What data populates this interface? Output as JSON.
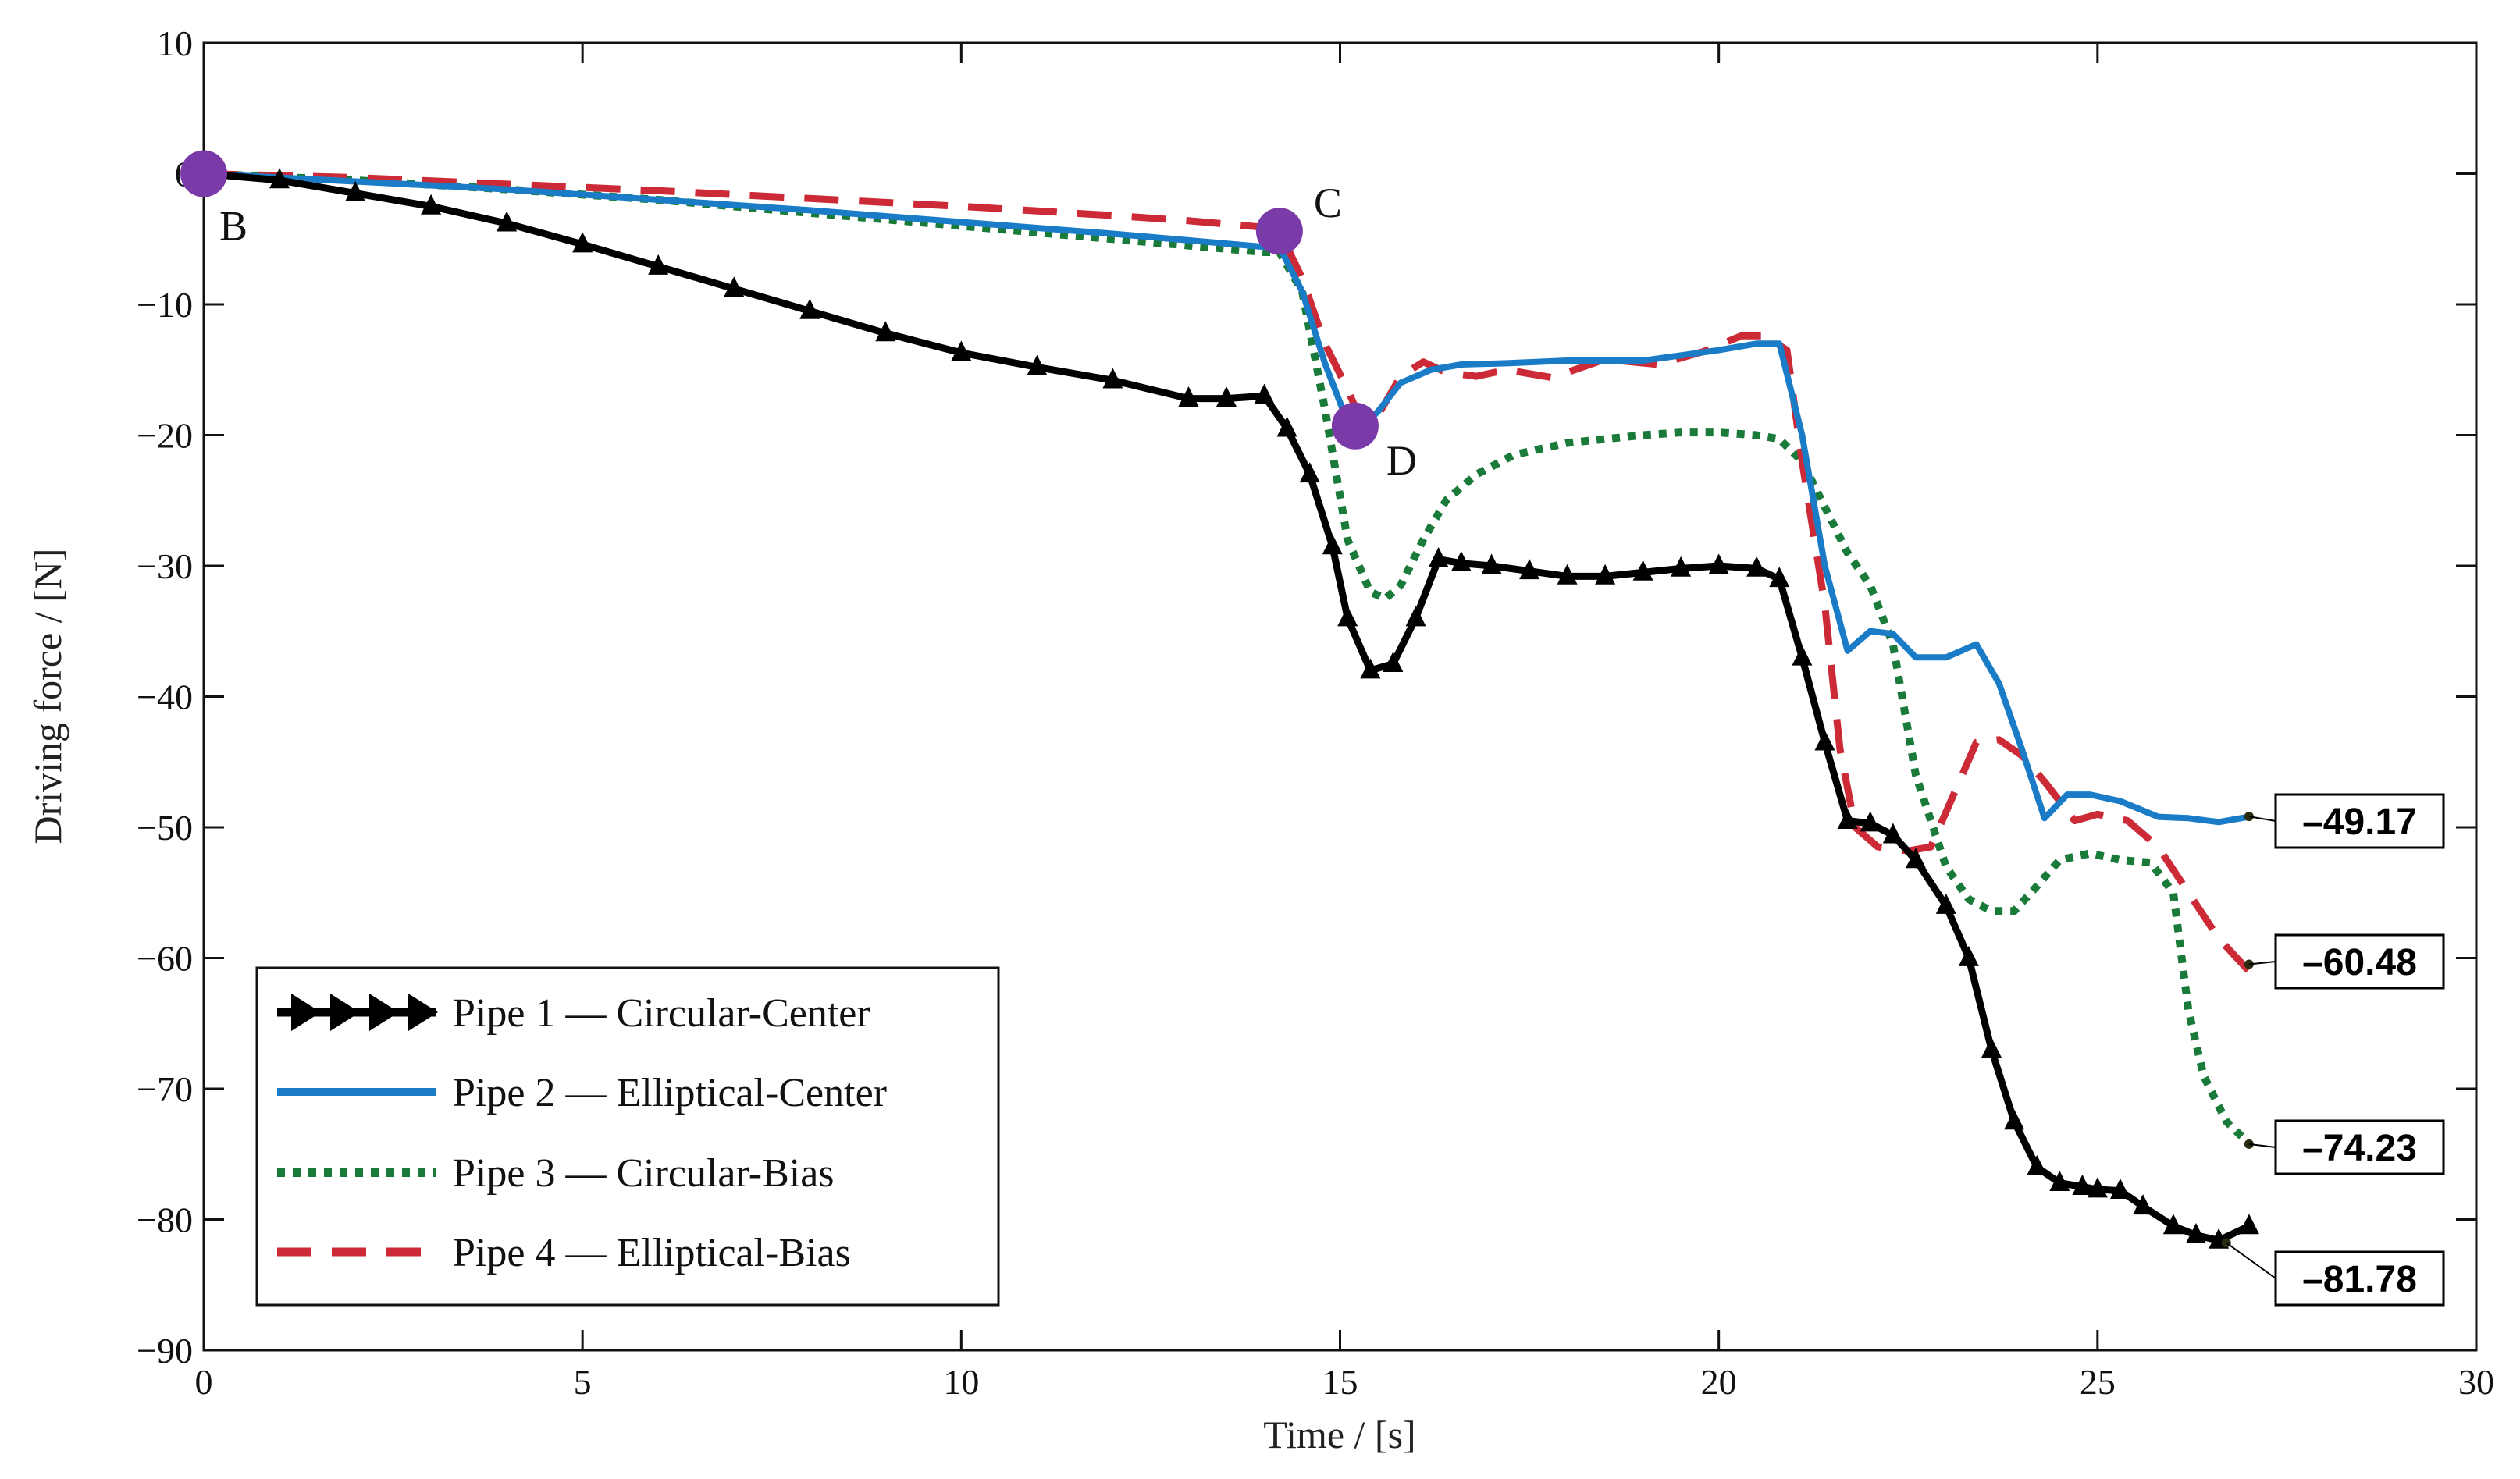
{
  "chart_data": {
    "type": "line",
    "xlabel": "Time / [s]",
    "ylabel": "Driving force / [N]",
    "xlim": [
      0,
      30
    ],
    "ylim": [
      -90,
      10
    ],
    "xticks": [
      "0",
      "5",
      "10",
      "15",
      "20",
      "25",
      "30"
    ],
    "yticks": [
      "10",
      "0",
      "−10",
      "−20",
      "−30",
      "−40",
      "−50",
      "−60",
      "−70",
      "−80",
      "−90"
    ],
    "legend_position": "bottom-left",
    "series": [
      {
        "name": "Pipe 1 — Circular-Center",
        "color": "#000000",
        "style": "solid-triangles",
        "x": [
          0,
          1,
          2,
          3,
          4,
          5,
          6,
          7,
          8,
          9,
          10,
          11,
          12,
          13,
          13.5,
          14,
          14.3,
          14.6,
          14.9,
          15.1,
          15.4,
          15.7,
          16,
          16.3,
          16.6,
          17,
          17.5,
          18,
          18.5,
          19,
          19.5,
          20,
          20.5,
          20.8,
          21.1,
          21.4,
          21.7,
          22,
          22.3,
          22.6,
          23,
          23.3,
          23.6,
          23.9,
          24.2,
          24.5,
          24.8,
          25,
          25.3,
          25.6,
          26,
          26.3,
          26.6,
          27
        ],
        "y": [
          0,
          -0.5,
          -1.5,
          -2.5,
          -3.8,
          -5.4,
          -7.1,
          -8.8,
          -10.5,
          -12.2,
          -13.7,
          -14.8,
          -15.8,
          -17.2,
          -17.2,
          -17.0,
          -19.5,
          -23,
          -28.5,
          -34,
          -38,
          -37.5,
          -34,
          -29.5,
          -29.8,
          -30,
          -30.4,
          -30.8,
          -30.8,
          -30.5,
          -30.2,
          -30.0,
          -30.2,
          -31,
          -37,
          -43.5,
          -49.5,
          -49.7,
          -50.6,
          -52.5,
          -56,
          -60,
          -67,
          -72.5,
          -76,
          -77.2,
          -77.5,
          -77.7,
          -77.8,
          -79,
          -80.5,
          -81.2,
          -81.6,
          -80.5
        ]
      },
      {
        "name": "Pipe 2 — Elliptical-Center",
        "color": "#1a7cc7",
        "style": "solid",
        "x": [
          0,
          2,
          4,
          6,
          8,
          10,
          12,
          13,
          14,
          14.2,
          14.5,
          14.8,
          15.1,
          15.3,
          15.5,
          15.8,
          16.2,
          16.6,
          17.2,
          18,
          19,
          20,
          20.5,
          20.8,
          21.1,
          21.4,
          21.7,
          22.0,
          22.3,
          22.6,
          23.0,
          23.4,
          23.7,
          24.0,
          24.3,
          24.6,
          24.9,
          25.3,
          25.8,
          26.2,
          26.6,
          27
        ],
        "y": [
          0,
          -0.6,
          -1.2,
          -2,
          -2.8,
          -3.7,
          -4.6,
          -5.1,
          -5.6,
          -5.6,
          -9,
          -14.5,
          -19,
          -19.3,
          -18.2,
          -16,
          -15,
          -14.6,
          -14.5,
          -14.3,
          -14.3,
          -13.5,
          -13,
          -13,
          -20,
          -30,
          -36.5,
          -35,
          -35.2,
          -37,
          -37,
          -36,
          -39,
          -44,
          -49.3,
          -47.5,
          -47.5,
          -48,
          -49.2,
          -49.3,
          -49.6,
          -49.2
        ]
      },
      {
        "name": "Pipe 3 — Circular-Bias",
        "color": "#1a7a3a",
        "style": "dotted",
        "x": [
          0,
          2,
          4,
          6,
          8,
          10,
          12,
          13,
          14,
          14.2,
          14.5,
          14.8,
          15.1,
          15.4,
          15.6,
          15.8,
          16.1,
          16.4,
          16.8,
          17.3,
          18,
          18.5,
          19,
          19.5,
          20,
          20.5,
          20.8,
          21.1,
          21.4,
          21.7,
          22.0,
          22.3,
          22.6,
          23.0,
          23.3,
          23.6,
          23.9,
          24.2,
          24.5,
          24.9,
          25.3,
          25.7,
          26.0,
          26.2,
          26.4,
          26.7,
          27
        ],
        "y": [
          0,
          -0.5,
          -1.2,
          -2.0,
          -3.0,
          -4.0,
          -5.0,
          -5.5,
          -6.0,
          -6.0,
          -9,
          -18,
          -28,
          -32,
          -32.5,
          -31.5,
          -28,
          -25,
          -23,
          -21.5,
          -20.6,
          -20.3,
          -20,
          -19.8,
          -19.8,
          -20,
          -20.3,
          -22,
          -25.5,
          -29,
          -31.5,
          -36,
          -46,
          -53,
          -55.5,
          -56.4,
          -56.4,
          -54.5,
          -52.5,
          -52,
          -52.5,
          -52.7,
          -55,
          -64,
          -69,
          -72.5,
          -74.2
        ]
      },
      {
        "name": "Pipe 4 — Elliptical-Bias",
        "color": "#cc2a36",
        "style": "dashed",
        "x": [
          0,
          2,
          4,
          6,
          8,
          10,
          12,
          13,
          14,
          14.2,
          14.5,
          14.8,
          15.1,
          15.3,
          15.5,
          15.8,
          16.1,
          16.4,
          16.8,
          17.2,
          17.8,
          18.5,
          19.2,
          19.8,
          20.3,
          20.6,
          20.9,
          21.1,
          21.4,
          21.6,
          21.8,
          22.1,
          22.5,
          22.8,
          23.1,
          23.4,
          23.7,
          24.0,
          24.3,
          24.7,
          25.0,
          25.4,
          25.8,
          26.2,
          26.6,
          27
        ],
        "y": [
          0,
          -0.3,
          -0.8,
          -1.3,
          -1.9,
          -2.5,
          -3.2,
          -3.6,
          -4.1,
          -4.4,
          -8,
          -13,
          -16.5,
          -19.2,
          -18.5,
          -15.5,
          -14.4,
          -15.2,
          -15.5,
          -15.0,
          -15.6,
          -14.2,
          -14.6,
          -13.6,
          -12.4,
          -12.4,
          -13.5,
          -22,
          -33,
          -44,
          -50,
          -51.5,
          -51.8,
          -51.5,
          -47.5,
          -43.5,
          -43.3,
          -44.5,
          -46.5,
          -49.5,
          -49,
          -49.5,
          -51.5,
          -55,
          -58.5,
          -61
        ]
      }
    ],
    "annotations": [
      {
        "label": "B",
        "x": 0,
        "y": 0
      },
      {
        "label": "C",
        "x": 14.2,
        "y": -4.4
      },
      {
        "label": "D",
        "x": 15.2,
        "y": -19.3
      }
    ],
    "end_labels": [
      {
        "text": "–49.17",
        "x": 27,
        "y": -49.17
      },
      {
        "text": "–60.48",
        "x": 27,
        "y": -60.48
      },
      {
        "text": "–74.23",
        "x": 27,
        "y": -74.23
      },
      {
        "text": "–81.78",
        "x": 26.7,
        "y": -81.78
      }
    ]
  }
}
